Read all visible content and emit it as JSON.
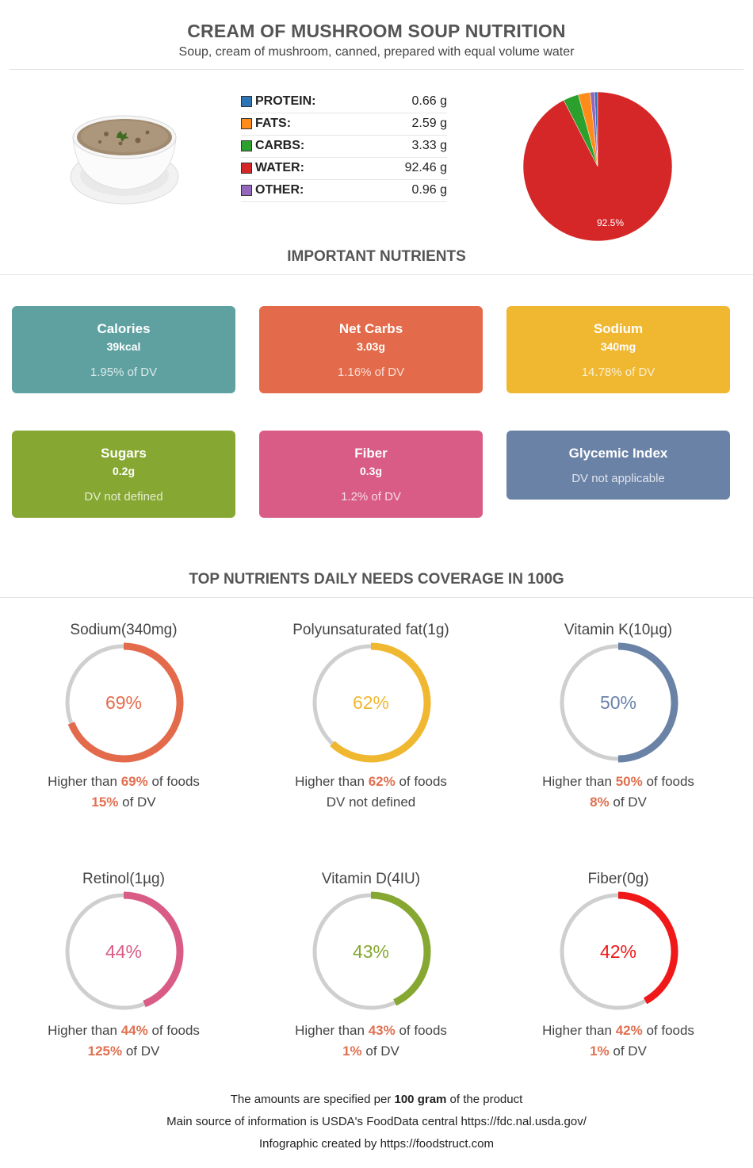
{
  "header": {
    "title": "CREAM OF MUSHROOM SOUP NUTRITION",
    "subtitle": "Soup, cream of mushroom, canned, prepared with equal volume water"
  },
  "macros": [
    {
      "label": "PROTEIN:",
      "value": "0.66 g",
      "color": "#2e75b6"
    },
    {
      "label": "FATS:",
      "value": "2.59 g",
      "color": "#ff8c1a"
    },
    {
      "label": "CARBS:",
      "value": "3.33 g",
      "color": "#2ca02c"
    },
    {
      "label": "WATER:",
      "value": "92.46 g",
      "color": "#d62728"
    },
    {
      "label": "OTHER:",
      "value": "0.96 g",
      "color": "#9467bd"
    }
  ],
  "important_title": "IMPORTANT NUTRIENTS",
  "cards": [
    {
      "name": "Calories",
      "value": "39kcal",
      "dv": "1.95% of DV",
      "color": "#5fa1a1"
    },
    {
      "name": "Net Carbs",
      "value": "3.03g",
      "dv": "1.16% of DV",
      "color": "#e36b4b"
    },
    {
      "name": "Sodium",
      "value": "340mg",
      "dv": "14.78% of DV",
      "color": "#f0b731"
    },
    {
      "name": "Sugars",
      "value": "0.2g",
      "dv": "DV not defined",
      "color": "#86a832"
    },
    {
      "name": "Fiber",
      "value": "0.3g",
      "dv": "1.2% of DV",
      "color": "#d95c86"
    },
    {
      "name": "Glycemic Index",
      "value": "",
      "dv": "DV not applicable",
      "color": "#6a82a6"
    }
  ],
  "coverage_title": "TOP NUTRIENTS DAILY NEEDS COVERAGE IN 100G",
  "rings": [
    {
      "title": "Sodium(340mg)",
      "pct": 69,
      "pct_label": "69%",
      "color": "#e36b4b",
      "higher_prefix": "Higher than ",
      "higher_value": "69%",
      "higher_suffix": " of foods",
      "dv_value": "15%",
      "dv_suffix": " of DV"
    },
    {
      "title": "Polyunsaturated fat(1g)",
      "pct": 62,
      "pct_label": "62%",
      "color": "#f0b731",
      "higher_prefix": "Higher than ",
      "higher_value": "62%",
      "higher_suffix": " of foods",
      "dv_value": "",
      "dv_suffix": "DV not defined"
    },
    {
      "title": "Vitamin K(10µg)",
      "pct": 50,
      "pct_label": "50%",
      "color": "#6a82a6",
      "higher_prefix": "Higher than ",
      "higher_value": "50%",
      "higher_suffix": " of foods",
      "dv_value": "8%",
      "dv_suffix": " of DV"
    },
    {
      "title": "Retinol(1µg)",
      "pct": 44,
      "pct_label": "44%",
      "color": "#d95c86",
      "higher_prefix": "Higher than ",
      "higher_value": "44%",
      "higher_suffix": " of foods",
      "dv_value": "125%",
      "dv_suffix": " of DV"
    },
    {
      "title": "Vitamin D(4IU)",
      "pct": 43,
      "pct_label": "43%",
      "color": "#86a832",
      "higher_prefix": "Higher than ",
      "higher_value": "43%",
      "higher_suffix": " of foods",
      "dv_value": "1%",
      "dv_suffix": " of DV"
    },
    {
      "title": "Fiber(0g)",
      "pct": 42,
      "pct_label": "42%",
      "color": "#f01818",
      "higher_prefix": "Higher than ",
      "higher_value": "42%",
      "higher_suffix": " of foods",
      "dv_value": "1%",
      "dv_suffix": " of DV"
    }
  ],
  "footer": {
    "line1_prefix": "The amounts are specified per ",
    "line1_bold": "100 gram",
    "line1_suffix": " of the product",
    "line2": "Main source of information is USDA's FoodData central https://fdc.nal.usda.gov/",
    "line3": "Infographic created by https://foodstruct.com"
  },
  "chart_data": {
    "type": "pie",
    "labels": [
      "PROTEIN",
      "FATS",
      "CARBS",
      "WATER",
      "OTHER"
    ],
    "values": [
      0.66,
      2.59,
      3.33,
      92.46,
      0.96
    ],
    "colors": [
      "#2e75b6",
      "#ff8c1a",
      "#2ca02c",
      "#d62728",
      "#9467bd"
    ],
    "slice_label": "92.5%",
    "unit": "g"
  }
}
